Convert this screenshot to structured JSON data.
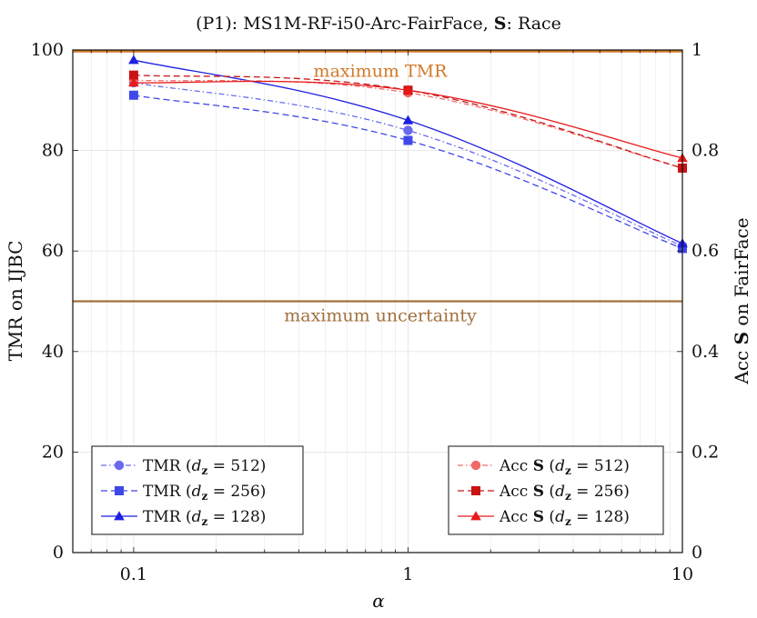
{
  "chart_data": {
    "type": "line",
    "title": "(P1):  MS1M-RF-i50-Arc-FairFace,  S: Race",
    "xlabel": "α",
    "ylabel_left": "TMR on IJBC",
    "ylabel_right": "Acc S on FairFace",
    "xscale": "log",
    "x": [
      0.1,
      1,
      10
    ],
    "xticks": [
      "0.1",
      "1",
      "10"
    ],
    "xlim": [
      0.06,
      10
    ],
    "ylim_left": [
      0,
      100
    ],
    "yticks_left": [
      "0",
      "20",
      "40",
      "60",
      "80",
      "100"
    ],
    "ylim_right": [
      0,
      1
    ],
    "yticks_right": [
      "0",
      "0.2",
      "0.4",
      "0.6",
      "0.8",
      "1"
    ],
    "grid": true,
    "reference_lines": [
      {
        "label": "maximum TMR",
        "value": 99.7,
        "color": "#d07a2a"
      },
      {
        "label": "maximum uncertainty",
        "value": 50,
        "color": "#a0703c"
      }
    ],
    "series": [
      {
        "name": "TMR (dz = 512)",
        "name_prefix": "TMR (",
        "sub": "z",
        "eq": " = 512)",
        "axis": "left",
        "color": "#6a6aee",
        "dash": "6 3 1.5 3",
        "marker": "circle",
        "values": [
          93.5,
          84,
          61
        ]
      },
      {
        "name": "TMR (dz = 256)",
        "name_prefix": "TMR (",
        "sub": "z",
        "eq": " = 256)",
        "axis": "left",
        "color": "#3f48e8",
        "dash": "7 4",
        "marker": "square",
        "values": [
          91,
          82,
          60.5
        ]
      },
      {
        "name": "TMR (dz = 128)",
        "name_prefix": "TMR (",
        "sub": "z",
        "eq": " = 128)",
        "axis": "left",
        "color": "#1f1fe0",
        "dash": "",
        "marker": "triangle",
        "values": [
          98,
          86,
          61.5
        ]
      },
      {
        "name": "Acc S (dz = 512)",
        "name_prefix": "Acc ",
        "bold": "S",
        "mid": " (",
        "sub": "z",
        "eq": " = 512)",
        "axis": "right",
        "color": "#f06a6a",
        "dash": "6 3 1.5 3",
        "marker": "circle",
        "values": [
          0.94,
          0.915,
          0.765
        ]
      },
      {
        "name": "Acc S (dz = 256)",
        "name_prefix": "Acc ",
        "bold": "S",
        "mid": " (",
        "sub": "z",
        "eq": " = 256)",
        "axis": "right",
        "color": "#c81414",
        "dash": "7 4",
        "marker": "square",
        "values": [
          0.95,
          0.92,
          0.765
        ]
      },
      {
        "name": "Acc S (dz = 128)",
        "name_prefix": "Acc ",
        "bold": "S",
        "mid": " (",
        "sub": "z",
        "eq": " = 128)",
        "axis": "right",
        "color": "#e81a1a",
        "dash": "",
        "marker": "triangle",
        "values": [
          0.935,
          0.92,
          0.785
        ]
      }
    ],
    "legends": [
      {
        "position": "bottom-left",
        "series_index": [
          0,
          1,
          2
        ]
      },
      {
        "position": "bottom-right",
        "series_index": [
          3,
          4,
          5
        ]
      }
    ]
  }
}
